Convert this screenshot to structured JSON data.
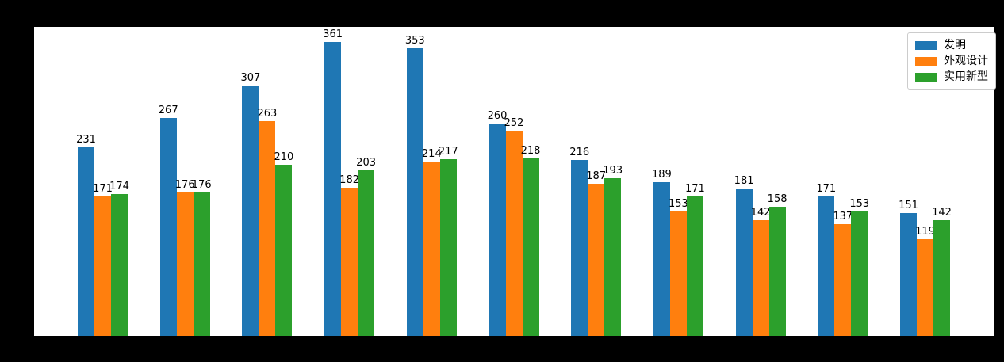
{
  "figure": {
    "background_color": "#000000",
    "plot_background_color": "#ffffff"
  },
  "chart_data": {
    "type": "bar",
    "title": "",
    "xlabel": "",
    "ylabel": "",
    "categories": [
      "",
      "",
      "",
      "",
      "",
      "",
      "",
      "",
      "",
      "",
      ""
    ],
    "series": [
      {
        "name": "发明",
        "color": "#1f77b4",
        "values": [
          231,
          267,
          307,
          361,
          353,
          260,
          216,
          189,
          181,
          171,
          151
        ]
      },
      {
        "name": "外观设计",
        "color": "#ff7f0e",
        "values": [
          171,
          176,
          263,
          182,
          214,
          252,
          187,
          153,
          142,
          137,
          119
        ]
      },
      {
        "name": "实用新型",
        "color": "#2ca02c",
        "values": [
          174,
          176,
          210,
          203,
          217,
          218,
          193,
          171,
          158,
          153,
          142
        ]
      }
    ],
    "ylim": [
      0,
      379
    ],
    "grid": false,
    "bar_value_labels": true,
    "legend_position": "upper right",
    "x_tick_labels_visible": false,
    "y_tick_labels_visible": false
  }
}
